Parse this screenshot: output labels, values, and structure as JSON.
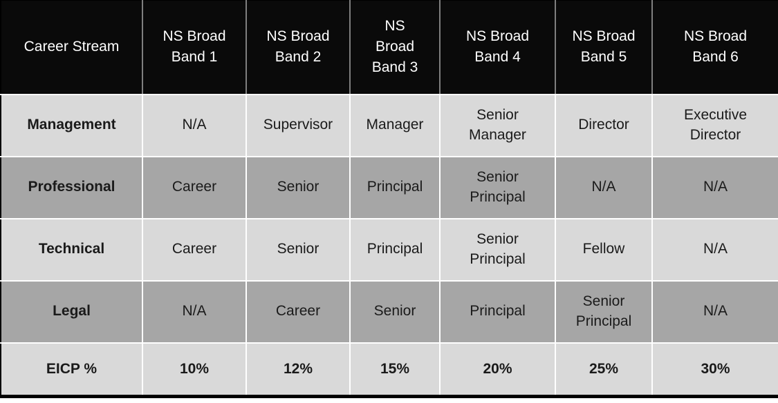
{
  "table": {
    "columns": [
      "Career Stream",
      "NS Broad Band 1",
      "NS Broad Band 2",
      "NS Broad Band 3",
      "NS Broad Band 4",
      "NS Broad Band 5",
      "NS Broad Band 6"
    ],
    "rows": [
      {
        "label": "Management",
        "cells": [
          "N/A",
          "Supervisor",
          "Manager",
          "Senior Manager",
          "Director",
          "Executive Director"
        ]
      },
      {
        "label": "Professional",
        "cells": [
          "Career",
          "Senior",
          "Principal",
          "Senior Principal",
          "N/A",
          "N/A"
        ]
      },
      {
        "label": "Technical",
        "cells": [
          "Career",
          "Senior",
          "Principal",
          "Senior Principal",
          "Fellow",
          "N/A"
        ]
      },
      {
        "label": "Legal",
        "cells": [
          "N/A",
          "Career",
          "Senior",
          "Principal",
          "Senior Principal",
          "N/A"
        ]
      },
      {
        "label": "EICP %",
        "cells": [
          "10%",
          "12%",
          "15%",
          "20%",
          "25%",
          "30%"
        ]
      }
    ],
    "colors": {
      "header_background": "#0a0a0a",
      "header_text": "#ffffff",
      "band_light": "#d9d9d9",
      "band_dark": "#a6a6a6",
      "body_text": "#1a1a1a",
      "header_divider": "#7f7f7f",
      "body_divider": "#ffffff",
      "outer_frame": "#000000"
    }
  }
}
